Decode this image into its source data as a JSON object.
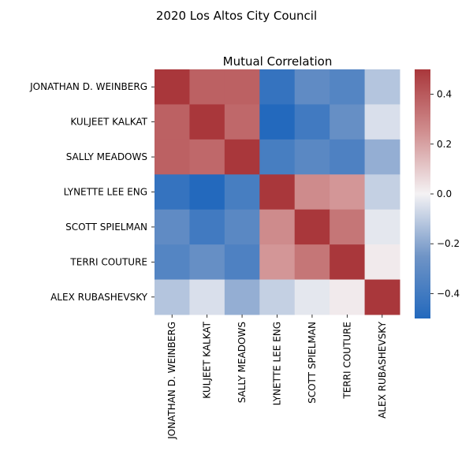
{
  "suptitle": "2020 Los Altos City Council",
  "chart_data": {
    "type": "heatmap",
    "title": "Mutual Correlation",
    "xlabel": "",
    "ylabel": "",
    "labels": [
      "JONATHAN D. WEINBERG",
      "KULJEET KALKAT",
      "SALLY MEADOWS",
      "LYNETTE LEE ENG",
      "SCOTT SPIELMAN",
      "TERRI COUTURE",
      "ALEX RUBASHEVSKY"
    ],
    "values": [
      [
        0.5,
        0.38,
        0.38,
        -0.44,
        -0.3,
        -0.34,
        -0.12
      ],
      [
        0.38,
        0.5,
        0.36,
        -0.5,
        -0.4,
        -0.28,
        -0.05
      ],
      [
        0.38,
        0.36,
        0.5,
        -0.38,
        -0.32,
        -0.36,
        -0.18
      ],
      [
        -0.44,
        -0.5,
        -0.38,
        0.5,
        0.26,
        0.23,
        -0.09
      ],
      [
        -0.3,
        -0.4,
        -0.32,
        0.26,
        0.5,
        0.32,
        -0.03
      ],
      [
        -0.34,
        -0.28,
        -0.36,
        0.23,
        0.32,
        0.5,
        0.02
      ],
      [
        -0.12,
        -0.05,
        -0.18,
        -0.09,
        -0.03,
        0.02,
        0.5
      ]
    ],
    "colorbar": {
      "colormap": "vlag",
      "vmin": -0.5,
      "vmax": 0.5,
      "ticks": [
        -0.4,
        -0.2,
        0.0,
        0.2,
        0.4
      ],
      "tick_labels": [
        "−0.4",
        "−0.2",
        "0.0",
        "0.2",
        "0.4"
      ]
    },
    "legend": "colorbar-right",
    "grid": false
  }
}
